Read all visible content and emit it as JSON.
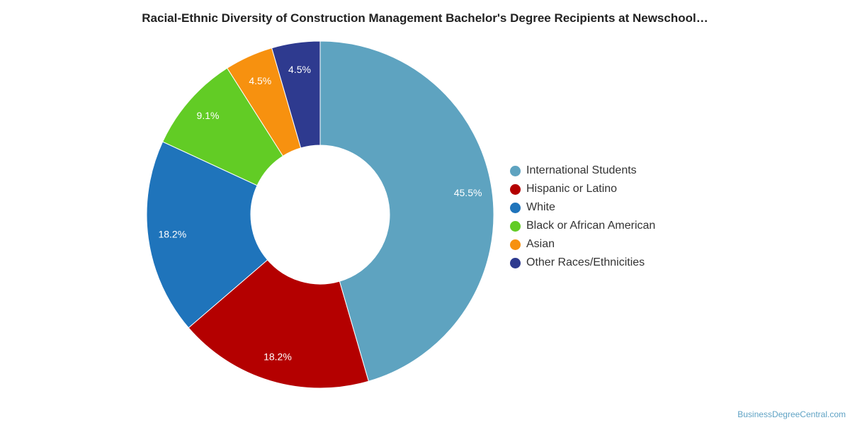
{
  "chart_data": {
    "type": "pie",
    "title": "Racial-Ethnic Diversity of Construction Management Bachelor's Degree Recipients at Newschool…",
    "categories": [
      "International Students",
      "Hispanic or Latino",
      "White",
      "Black or African American",
      "Asian",
      "Other Races/Ethnicities"
    ],
    "values": [
      45.5,
      18.2,
      18.2,
      9.1,
      4.5,
      4.5
    ],
    "labels": [
      "45.5%",
      "18.2%",
      "18.2%",
      "9.1%",
      "4.5%",
      "4.5%"
    ],
    "colors": [
      "#5ea3c0",
      "#b40000",
      "#1f74bb",
      "#62cc25",
      "#f7910f",
      "#2e3a8f"
    ],
    "legend_position": "right"
  },
  "credit": "BusinessDegreeCentral.com"
}
